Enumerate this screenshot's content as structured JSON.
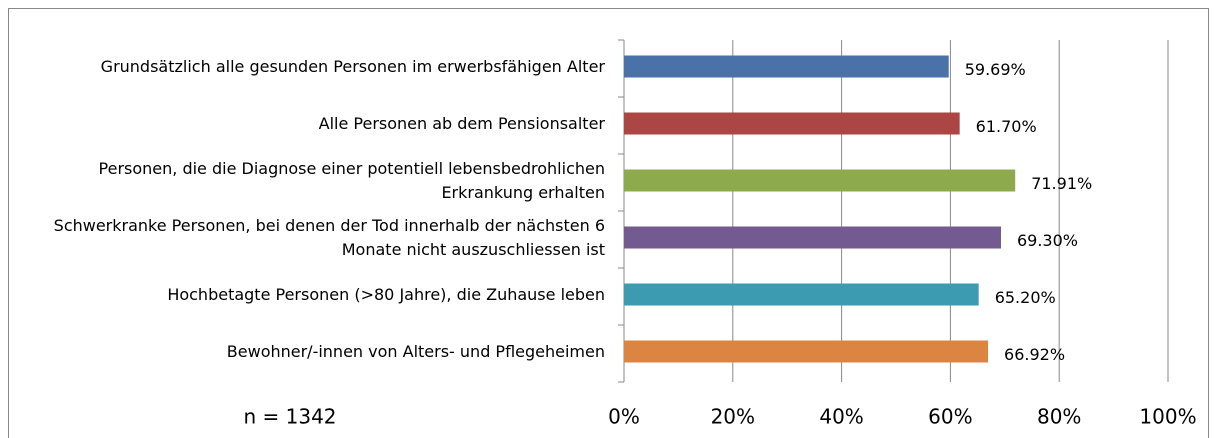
{
  "chart_data": {
    "type": "bar",
    "orientation": "horizontal",
    "categories": [
      "Grundsätzlich alle gesunden Personen im erwerbsfähigen Alter",
      "Alle Personen ab dem Pensionsalter",
      "Personen, die die Diagnose einer potentiell lebensbedrohlichen Erkrankung erhalten",
      "Schwerkranke Personen, bei denen der Tod innerhalb der nächsten 6 Monate nicht auszuschliessen ist",
      "Hochbetagte Personen (>80 Jahre), die Zuhause leben",
      "Bewohner/-innen von Alters- und Pflegeheimen"
    ],
    "values": [
      59.69,
      61.7,
      71.91,
      69.3,
      65.2,
      66.92
    ],
    "value_labels": [
      "59.69%",
      "61.70%",
      "71.91%",
      "69.30%",
      "65.20%",
      "66.92%"
    ],
    "colors": [
      "#4a72a9",
      "#ab4644",
      "#8daa4c",
      "#735a91",
      "#3d9bb1",
      "#dc8442"
    ],
    "xlim": [
      0,
      100
    ],
    "xticks": [
      {
        "value": 0,
        "label": "0%"
      },
      {
        "value": 20,
        "label": "20%"
      },
      {
        "value": 40,
        "label": "40%"
      },
      {
        "value": 60,
        "label": "60%"
      },
      {
        "value": 80,
        "label": "80%"
      },
      {
        "value": 100,
        "label": "100%"
      }
    ],
    "grid": true,
    "annotation": "n = 1342"
  }
}
